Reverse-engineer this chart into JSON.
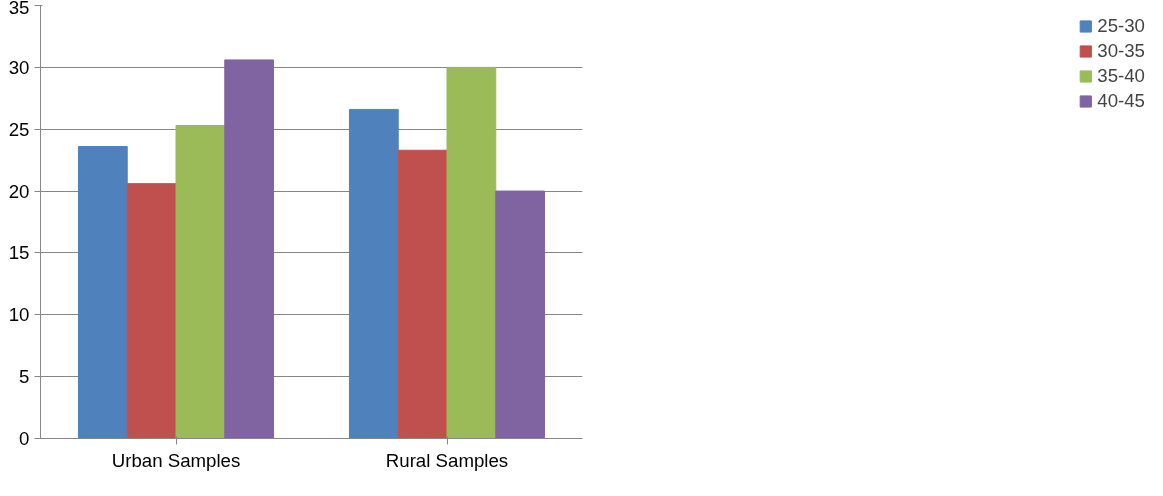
{
  "chart_data": {
    "type": "bar",
    "categories": [
      "Urban Samples",
      "Rural Samples"
    ],
    "series": [
      {
        "name": "25-30",
        "color": "#4f81bd",
        "values": [
          23.6,
          26.6
        ]
      },
      {
        "name": "30-35",
        "color": "#c0504d",
        "values": [
          20.6,
          23.3
        ]
      },
      {
        "name": "35-40",
        "color": "#9bbb59",
        "values": [
          25.3,
          30
        ]
      },
      {
        "name": "40-45",
        "color": "#8064a2",
        "values": [
          30.6,
          20
        ]
      }
    ],
    "ylim": [
      0,
      35
    ],
    "yticks": [
      0,
      5,
      10,
      15,
      20,
      25,
      30,
      35
    ],
    "grid": "y",
    "legend": "right"
  }
}
